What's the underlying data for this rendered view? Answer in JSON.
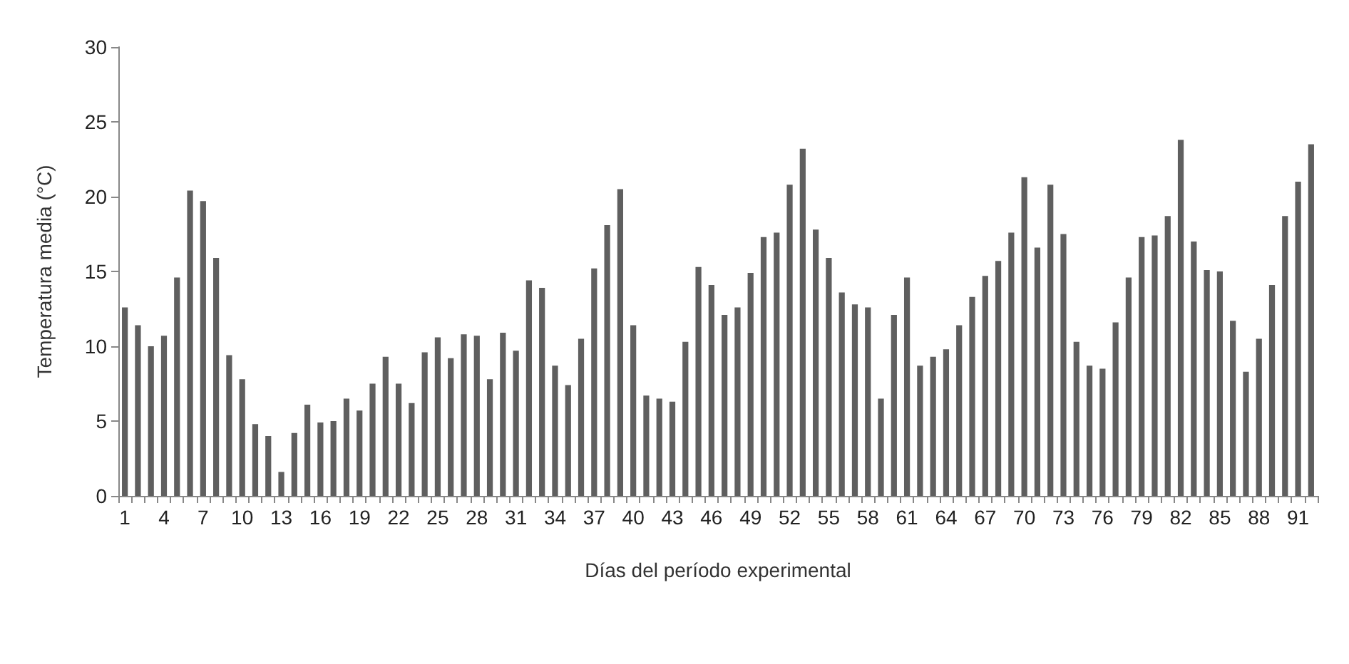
{
  "chart_data": {
    "type": "bar",
    "xlabel": "Días del período experimental",
    "ylabel": "Temperatura media (°C)",
    "categories": [
      "1",
      null,
      null,
      "4",
      null,
      null,
      "7",
      null,
      null,
      "10",
      null,
      null,
      "13",
      null,
      null,
      "16",
      null,
      null,
      "19",
      null,
      null,
      "22",
      null,
      null,
      "25",
      null,
      null,
      "28",
      null,
      null,
      "31",
      null,
      null,
      "34",
      null,
      null,
      "37",
      null,
      null,
      "40",
      null,
      null,
      "43",
      null,
      null,
      "46",
      null,
      null,
      "49",
      null,
      null,
      "52",
      null,
      null,
      "55",
      null,
      null,
      "58",
      null,
      null,
      "61",
      null,
      null,
      "64",
      null,
      null,
      "67",
      null,
      null,
      "70",
      null,
      null,
      "73",
      null,
      null,
      "76",
      null,
      null,
      "79",
      null,
      null,
      "82",
      null,
      null,
      "85",
      null,
      null,
      "88",
      null,
      null,
      "91",
      null
    ],
    "values": [
      12.6,
      11.4,
      10.0,
      10.7,
      14.6,
      20.4,
      19.7,
      15.9,
      9.4,
      7.8,
      4.8,
      4.0,
      1.6,
      4.2,
      6.1,
      4.9,
      5.0,
      6.5,
      5.7,
      7.5,
      9.3,
      7.5,
      6.2,
      9.6,
      10.6,
      9.2,
      10.8,
      10.7,
      7.8,
      10.9,
      9.7,
      14.4,
      13.9,
      8.7,
      7.4,
      10.5,
      15.2,
      18.1,
      20.5,
      11.4,
      6.7,
      6.5,
      6.3,
      10.3,
      15.3,
      14.1,
      12.1,
      12.6,
      14.9,
      17.3,
      17.6,
      20.8,
      23.2,
      17.8,
      15.9,
      13.6,
      12.8,
      12.6,
      6.5,
      12.1,
      14.6,
      8.7,
      9.3,
      9.8,
      11.4,
      13.3,
      14.7,
      15.7,
      17.6,
      21.3,
      16.6,
      20.8,
      17.5,
      10.3,
      8.7,
      8.5,
      11.6,
      14.6,
      17.3,
      17.4,
      18.7,
      23.8,
      17.0,
      15.1,
      15.0,
      11.7,
      8.3,
      10.5,
      14.1,
      18.7,
      21.0,
      23.5
    ],
    "color": "#5f5f5f",
    "ylim": [
      0,
      30
    ],
    "yticks": [
      0,
      5,
      10,
      15,
      20,
      25,
      30
    ],
    "grid": false
  }
}
